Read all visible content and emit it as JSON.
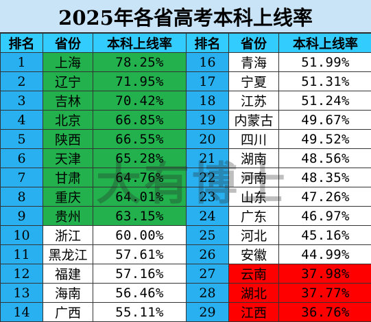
{
  "title": "2025年各省高考本科上线率",
  "headers": {
    "rank": "排名",
    "province": "省份",
    "rate": "本科上线率"
  },
  "left": [
    {
      "rank": "1",
      "province": "上海",
      "rate": "78.25%",
      "highlight": "green"
    },
    {
      "rank": "2",
      "province": "辽宁",
      "rate": "71.95%",
      "highlight": "green"
    },
    {
      "rank": "3",
      "province": "吉林",
      "rate": "70.42%",
      "highlight": "green"
    },
    {
      "rank": "4",
      "province": "北京",
      "rate": "66.85%",
      "highlight": "green"
    },
    {
      "rank": "5",
      "province": "陕西",
      "rate": "66.55%",
      "highlight": "green"
    },
    {
      "rank": "6",
      "province": "天津",
      "rate": "65.28%",
      "highlight": "green"
    },
    {
      "rank": "7",
      "province": "甘肃",
      "rate": "64.76%",
      "highlight": "green"
    },
    {
      "rank": "8",
      "province": "重庆",
      "rate": "64.01%",
      "highlight": "green"
    },
    {
      "rank": "9",
      "province": "贵州",
      "rate": "63.15%",
      "highlight": "green"
    },
    {
      "rank": "10",
      "province": "浙江",
      "rate": "60.00%",
      "highlight": "none"
    },
    {
      "rank": "11",
      "province": "黑龙江",
      "rate": "57.61%",
      "highlight": "none"
    },
    {
      "rank": "12",
      "province": "福建",
      "rate": "57.16%",
      "highlight": "none"
    },
    {
      "rank": "13",
      "province": "海南",
      "rate": "56.46%",
      "highlight": "none"
    },
    {
      "rank": "14",
      "province": "广西",
      "rate": "55.11%",
      "highlight": "none"
    }
  ],
  "right": [
    {
      "rank": "16",
      "province": "青海",
      "rate": "51.99%",
      "highlight": "none"
    },
    {
      "rank": "17",
      "province": "宁夏",
      "rate": "51.31%",
      "highlight": "none"
    },
    {
      "rank": "18",
      "province": "江苏",
      "rate": "51.24%",
      "highlight": "none"
    },
    {
      "rank": "19",
      "province": "内蒙古",
      "rate": "49.67%",
      "highlight": "none"
    },
    {
      "rank": "20",
      "province": "四川",
      "rate": "49.52%",
      "highlight": "none"
    },
    {
      "rank": "21",
      "province": "湖南",
      "rate": "48.56%",
      "highlight": "none"
    },
    {
      "rank": "22",
      "province": "河南",
      "rate": "48.35%",
      "highlight": "none"
    },
    {
      "rank": "23",
      "province": "山东",
      "rate": "47.26%",
      "highlight": "none"
    },
    {
      "rank": "24",
      "province": "广东",
      "rate": "46.97%",
      "highlight": "none"
    },
    {
      "rank": "25",
      "province": "河北",
      "rate": "45.16%",
      "highlight": "none"
    },
    {
      "rank": "26",
      "province": "安徽",
      "rate": "44.99%",
      "highlight": "none"
    },
    {
      "rank": "27",
      "province": "云南",
      "rate": "37.98%",
      "highlight": "red"
    },
    {
      "rank": "28",
      "province": "湖北",
      "rate": "37.77%",
      "highlight": "red"
    },
    {
      "rank": "29",
      "province": "江西",
      "rate": "36.76%",
      "highlight": "red"
    }
  ],
  "watermark": "大有博士",
  "colors": {
    "title_bg": "#c9e4f6",
    "header_bg": "#33ccff",
    "rank_bg": "#29b0f0",
    "top_highlight": "#22b14c",
    "bottom_highlight": "#ff0000"
  }
}
